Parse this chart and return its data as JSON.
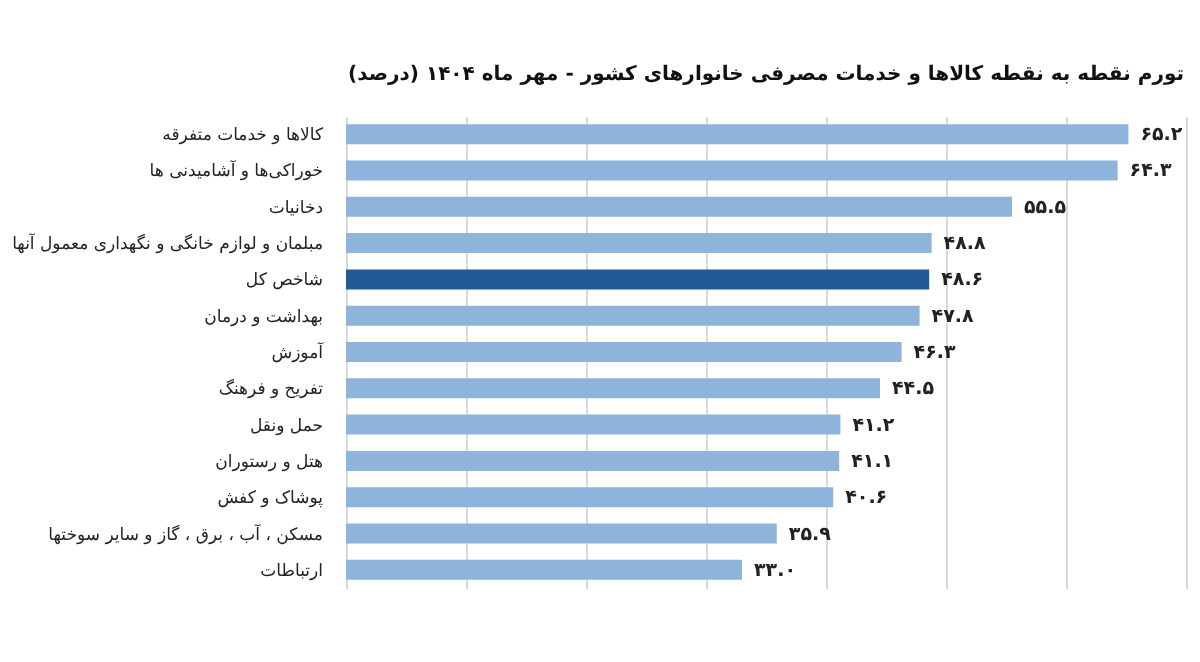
{
  "chart_data": {
    "type": "bar",
    "orientation": "horizontal",
    "title": "تورم نقطه به نقطه کالاها و خدمات مصرفی خانوارهای کشور - مهر ماه ۱۴۰۴ (درصد)",
    "categories": [
      "کالاها و خدمات متفرقه",
      "خوراکی‌ها و آشامیدنی ها",
      "دخانیات",
      "مبلمان و لوازم خانگی و نگهداری معمول آنها",
      "شاخص کل",
      "بهداشت و درمان",
      "آموزش",
      "تفریح و فرهنگ",
      "حمل ونقل",
      "هتل و رستوران",
      "پوشاک و کفش",
      "مسکن ، آب ، برق ، گاز و سایر سوختها",
      "ارتباطات"
    ],
    "values": [
      65.2,
      64.3,
      55.5,
      48.8,
      48.6,
      47.8,
      46.3,
      44.5,
      41.2,
      41.1,
      40.6,
      35.9,
      33.0
    ],
    "value_labels": [
      "۶۵.۲",
      "۶۴.۳",
      "۵۵.۵",
      "۴۸.۸",
      "۴۸.۶",
      "۴۷.۸",
      "۴۶.۳",
      "۴۴.۵",
      "۴۱.۲",
      "۴۱.۱",
      "۴۰.۶",
      "۳۵.۹",
      "۳۳.۰"
    ],
    "colors": [
      "#8fb4dc",
      "#8fb4dc",
      "#8fb4dc",
      "#8fb4dc",
      "#1f5a96",
      "#8fb4dc",
      "#8fb4dc",
      "#8fb4dc",
      "#8fb4dc",
      "#8fb4dc",
      "#8fb4dc",
      "#8fb4dc",
      "#8fb4dc"
    ],
    "xlim": [
      0,
      70
    ],
    "xticks": [
      {
        "value": 0,
        "label": null
      },
      {
        "value": 10,
        "label": null
      },
      {
        "value": 20,
        "label": null
      },
      {
        "value": 30,
        "label": null
      },
      {
        "value": 40,
        "label": null
      },
      {
        "value": 50,
        "label": null
      },
      {
        "value": 60,
        "label": null
      },
      {
        "value": 70,
        "label": null
      }
    ],
    "grid": "x",
    "tick_labels": "y"
  }
}
